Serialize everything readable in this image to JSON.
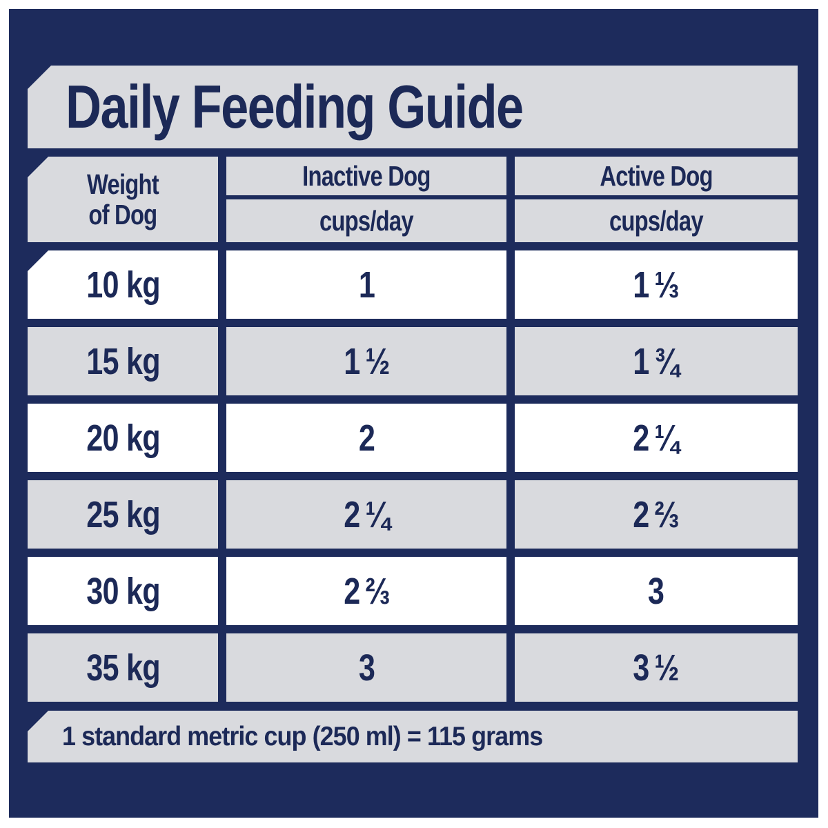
{
  "title": "Daily Feeding Guide",
  "table": {
    "weight_header": {
      "line1": "Weight",
      "line2": "of Dog"
    },
    "columns": [
      {
        "label": "Inactive Dog",
        "unit": "cups/day"
      },
      {
        "label": "Active Dog",
        "unit": "cups/day"
      }
    ],
    "rows": [
      {
        "weight": "10 kg",
        "inactive": "1",
        "active": "1 ⅓"
      },
      {
        "weight": "15 kg",
        "inactive": "1 ½",
        "active": "1 ¾"
      },
      {
        "weight": "20 kg",
        "inactive": "2",
        "active": "2 ¼"
      },
      {
        "weight": "25 kg",
        "inactive": "2 ¼",
        "active": "2 ⅔"
      },
      {
        "weight": "30 kg",
        "inactive": "2 ⅔",
        "active": "3"
      },
      {
        "weight": "35 kg",
        "inactive": "3",
        "active": "3 ½"
      }
    ]
  },
  "footnote": "1 standard metric cup (250 ml) = 115 grams",
  "colors": {
    "background_navy": "#1d2b5c",
    "text_navy": "#1c2957",
    "panel_gray": "#d9dade",
    "row_white": "#ffffff",
    "outer_border": "#ffffff"
  },
  "chart_data": {
    "type": "table",
    "title": "Daily Feeding Guide",
    "columns": [
      "Weight of Dog",
      "Inactive Dog (cups/day)",
      "Active Dog (cups/day)"
    ],
    "rows": [
      [
        "10 kg",
        "1",
        "1 1/3"
      ],
      [
        "15 kg",
        "1 1/2",
        "1 3/4"
      ],
      [
        "20 kg",
        "2",
        "2 1/4"
      ],
      [
        "25 kg",
        "2 1/4",
        "2 2/3"
      ],
      [
        "30 kg",
        "2 2/3",
        "3"
      ],
      [
        "35 kg",
        "3",
        "3 1/2"
      ]
    ],
    "note": "1 standard metric cup (250 ml) = 115 grams"
  }
}
